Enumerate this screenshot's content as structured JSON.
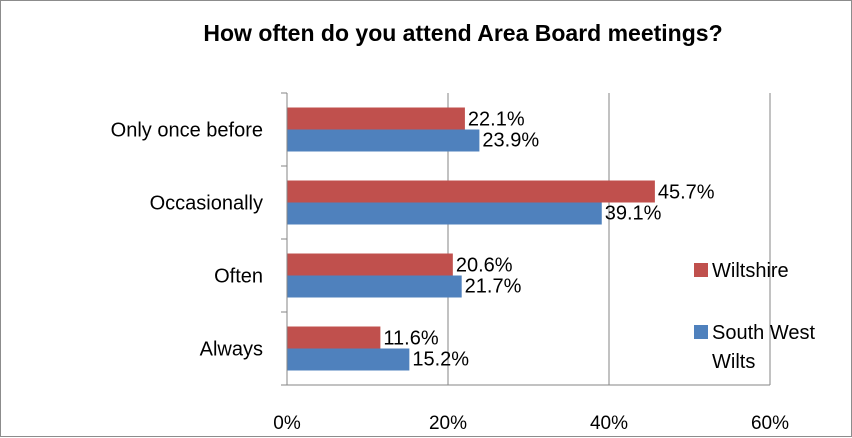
{
  "chart_data": {
    "type": "bar",
    "orientation": "horizontal",
    "title": "How often do you attend Area Board meetings?",
    "xlabel": "",
    "ylabel": "",
    "categories": [
      "Only once before",
      "Occasionally",
      "Often",
      "Always"
    ],
    "series": [
      {
        "name": "Wiltshire",
        "color": "#c0504d",
        "values": [
          22.1,
          45.7,
          20.6,
          11.6
        ],
        "labels": [
          "22.1%",
          "45.7%",
          "20.6%",
          "11.6%"
        ]
      },
      {
        "name": "South West Wilts",
        "color": "#4f81bd",
        "values": [
          23.9,
          39.1,
          21.7,
          15.2
        ],
        "labels": [
          "23.9%",
          "39.1%",
          "21.7%",
          "15.2%"
        ]
      }
    ],
    "xlim": [
      0,
      60
    ],
    "xticks": [
      0,
      20,
      40,
      60
    ],
    "xtick_labels": [
      "0%",
      "20%",
      "40%",
      "60%"
    ],
    "grid": "vertical",
    "legend": {
      "placement": "right",
      "lines": [
        [
          "Wiltshire"
        ],
        [
          "South West",
          "Wilts"
        ]
      ]
    }
  }
}
